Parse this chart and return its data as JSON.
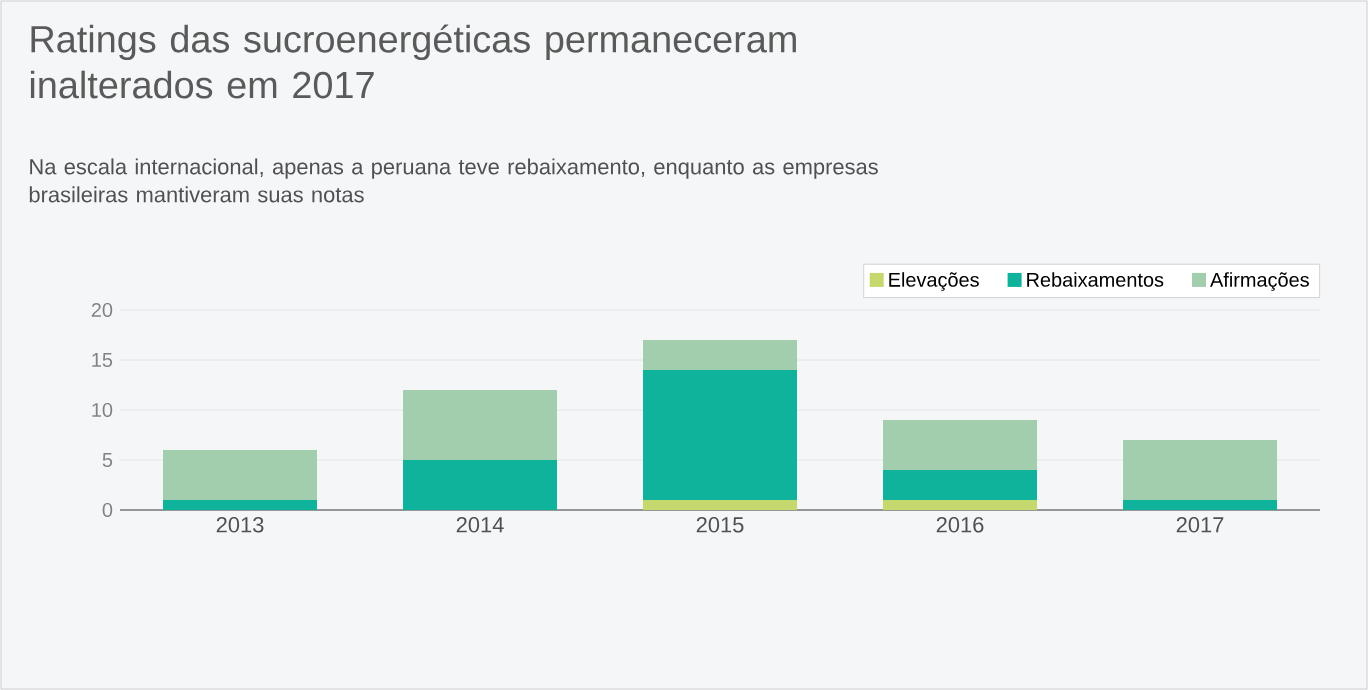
{
  "chart_data": {
    "type": "bar",
    "title": "Ratings das sucroenergéticas permaneceram inalterados em 2017",
    "subtitle": "Na escala internacional, apenas a peruana teve rebaixamento, enquanto as empresas brasileiras mantiveram suas notas",
    "categories": [
      "2013",
      "2014",
      "2015",
      "2016",
      "2017"
    ],
    "series": [
      {
        "name": "Elevações",
        "color": "#c5d86d",
        "values": [
          0,
          0,
          1,
          1,
          0
        ]
      },
      {
        "name": "Rebaixamentos",
        "color": "#0fb39b",
        "values": [
          1,
          5,
          13,
          3,
          1
        ]
      },
      {
        "name": "Afirmações",
        "color": "#a3cead",
        "values": [
          5,
          7,
          3,
          5,
          6
        ]
      }
    ],
    "stacked": true,
    "ylim": [
      0,
      20
    ],
    "yticks": [
      0,
      5,
      10,
      15,
      20
    ],
    "grid": "y",
    "legend": "top right"
  }
}
